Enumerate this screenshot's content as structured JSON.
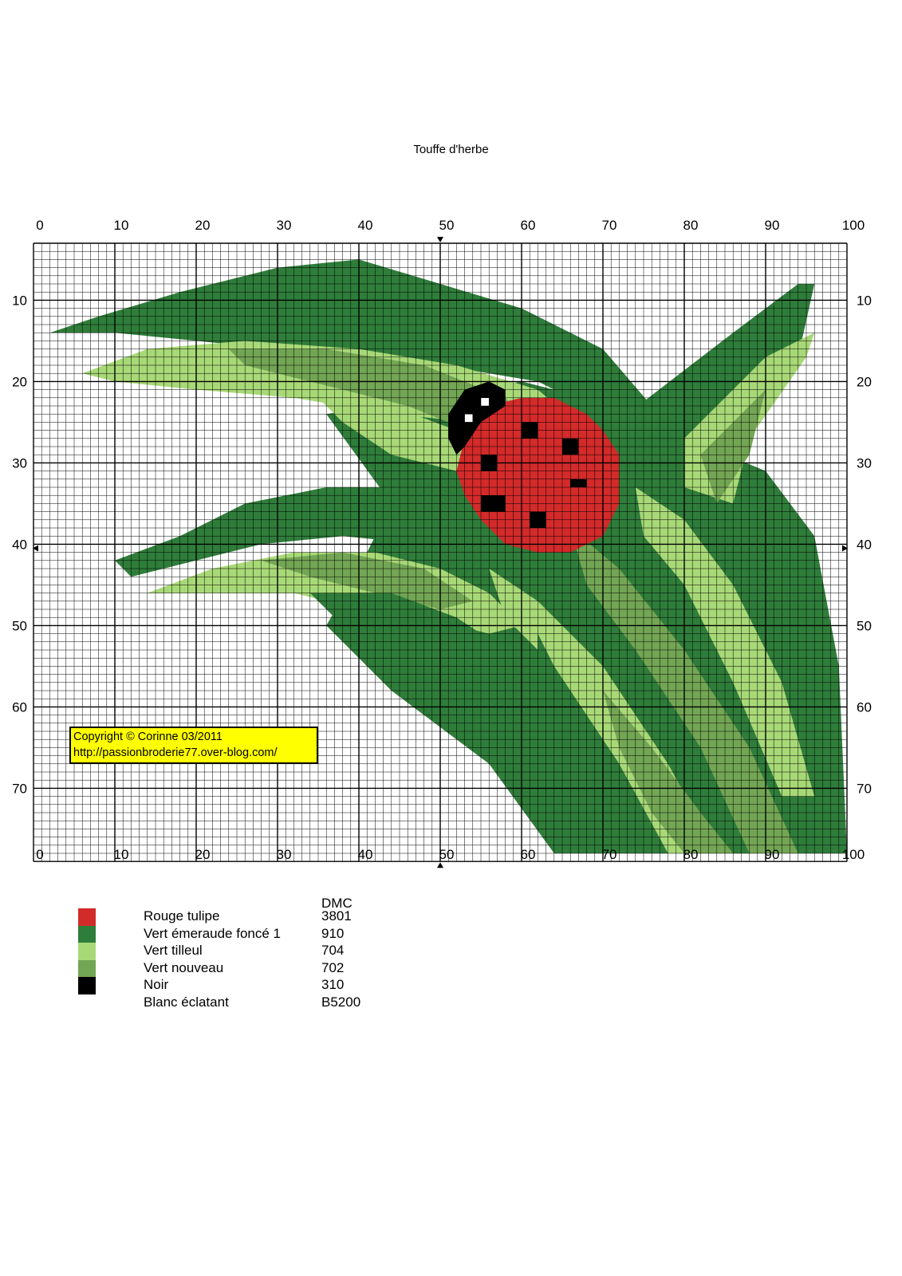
{
  "title": "Touffe d'herbe",
  "grid": {
    "columns": 100,
    "rows": 76
  },
  "axis": {
    "x_ticks": [
      "0",
      "10",
      "20",
      "30",
      "40",
      "50",
      "60",
      "70",
      "80",
      "90",
      "100"
    ],
    "y_ticks": [
      "10",
      "20",
      "30",
      "40",
      "50",
      "60",
      "70"
    ]
  },
  "center_markers": {
    "x": 50,
    "y": 40
  },
  "copyright": {
    "line1": "Copyright © Corinne 03/2011",
    "line2": "http://passionbroderie77.over-blog.com/"
  },
  "legend": {
    "header": "DMC",
    "items": [
      {
        "name": "Rouge tulipe",
        "code": "3801",
        "color": "#d32a2a"
      },
      {
        "name": "Vert émeraude foncé 1",
        "code": "910",
        "color": "#2f7d3a"
      },
      {
        "name": "Vert tilleul",
        "code": "704",
        "color": "#a8d977"
      },
      {
        "name": "Vert nouveau",
        "code": "702",
        "color": "#73a654"
      },
      {
        "name": "Noir",
        "code": "310",
        "color": "#000000"
      },
      {
        "name": "Blanc éclatant",
        "code": "B5200",
        "color": "#ffffff"
      }
    ]
  }
}
